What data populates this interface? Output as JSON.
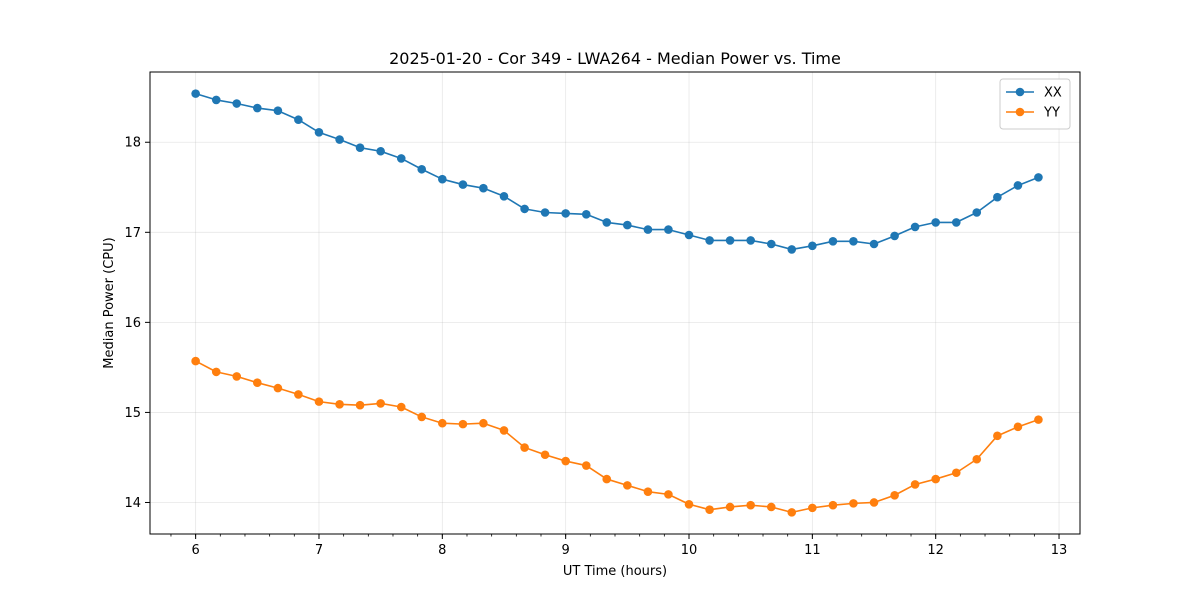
{
  "chart_data": {
    "type": "line",
    "title": "2025-01-20 - Cor 349 - LWA264 - Median Power vs. Time",
    "xlabel": "UT Time (hours)",
    "ylabel": "Median Power (CPU)",
    "xlim": [
      5.63,
      13.17
    ],
    "ylim": [
      13.65,
      18.78
    ],
    "xticks": [
      6,
      7,
      8,
      9,
      10,
      11,
      12,
      13
    ],
    "xtick_labels": [
      "6",
      "7",
      "8",
      "9",
      "10",
      "11",
      "12",
      "13"
    ],
    "yticks": [
      14,
      15,
      16,
      17,
      18
    ],
    "ytick_labels": [
      "14",
      "15",
      "16",
      "17",
      "18"
    ],
    "grid": true,
    "legend_position": "top-right",
    "x": [
      6.0,
      6.167,
      6.333,
      6.5,
      6.667,
      6.833,
      7.0,
      7.167,
      7.333,
      7.5,
      7.667,
      7.833,
      8.0,
      8.167,
      8.333,
      8.5,
      8.667,
      8.833,
      9.0,
      9.167,
      9.333,
      9.5,
      9.667,
      9.833,
      10.0,
      10.167,
      10.333,
      10.5,
      10.667,
      10.833,
      11.0,
      11.167,
      11.333,
      11.5,
      11.667,
      11.833,
      12.0,
      12.167,
      12.333,
      12.5,
      12.667,
      12.833
    ],
    "series": [
      {
        "name": "XX",
        "color": "#1f77b4",
        "values": [
          18.54,
          18.47,
          18.43,
          18.38,
          18.35,
          18.25,
          18.11,
          18.03,
          17.94,
          17.9,
          17.82,
          17.7,
          17.59,
          17.53,
          17.49,
          17.4,
          17.26,
          17.22,
          17.21,
          17.2,
          17.11,
          17.08,
          17.03,
          17.03,
          16.97,
          16.91,
          16.91,
          16.91,
          16.87,
          16.81,
          16.85,
          16.9,
          16.9,
          16.87,
          16.96,
          17.06,
          17.11,
          17.11,
          17.22,
          17.39,
          17.52,
          17.61
        ]
      },
      {
        "name": "YY",
        "color": "#ff7f0e",
        "values": [
          15.57,
          15.45,
          15.4,
          15.33,
          15.27,
          15.2,
          15.12,
          15.09,
          15.08,
          15.1,
          15.06,
          14.95,
          14.88,
          14.87,
          14.88,
          14.8,
          14.61,
          14.53,
          14.46,
          14.41,
          14.26,
          14.19,
          14.12,
          14.09,
          13.98,
          13.92,
          13.95,
          13.97,
          13.95,
          13.89,
          13.94,
          13.97,
          13.99,
          14.0,
          14.08,
          14.2,
          14.26,
          14.33,
          14.48,
          14.74,
          14.84,
          14.92
        ]
      }
    ]
  }
}
